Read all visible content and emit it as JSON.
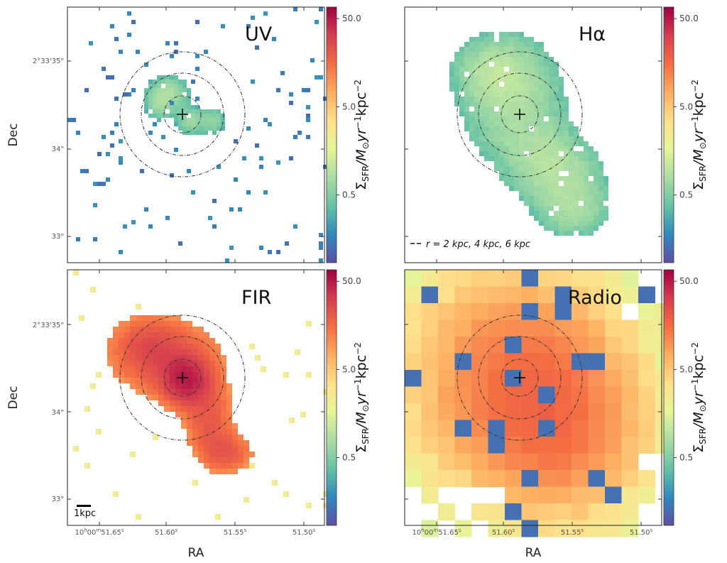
{
  "colors": {
    "scale": [
      "#5e4fa2",
      "#3288bd",
      "#66c2a5",
      "#abdda4",
      "#e6f598",
      "#fee08b",
      "#fdae61",
      "#f46d43",
      "#d53e4f",
      "#9e0142"
    ],
    "circle": "#333333",
    "cross": "#000000"
  },
  "chart_data": {
    "type": "heatmap",
    "colorbar": {
      "label_main": "Σ",
      "label_sub": "SFR",
      "label_rest": "/M",
      "label_sun": "⊙",
      "label_yr": "yr",
      "label_exp1": "−1",
      "label_kpc": "kpc",
      "label_exp2": "−2",
      "ticks": [
        "50.0",
        "5.0",
        "0.5"
      ],
      "scale": "log",
      "range": [
        0.1,
        60
      ]
    },
    "xlabel": "RA",
    "ylabel": "Dec",
    "x_ticks": [
      "10h00m51.65s",
      "51.60s",
      "51.55s",
      "51.50s"
    ],
    "x_tick_parts": [
      {
        "a": "10",
        "b": "h",
        "c": "00",
        "d": "m",
        "e": "51.65",
        "f": "s"
      },
      {
        "a": "",
        "b": "",
        "c": "",
        "d": "",
        "e": "51.60",
        "f": "s"
      },
      {
        "a": "",
        "b": "",
        "c": "",
        "d": "",
        "e": "51.55",
        "f": "s"
      },
      {
        "a": "",
        "b": "",
        "c": "",
        "d": "",
        "e": "51.50",
        "f": "s"
      }
    ],
    "y_ticks": [
      "2°33'35\"",
      "34\"",
      "33\""
    ],
    "circle_radii_kpc": [
      2,
      4,
      6
    ],
    "legend_text": "r = 2 kpc, 4 kpc, 6 kpc",
    "scale_bar_label": "1kpc",
    "panels": [
      {
        "name": "UV",
        "median_sfr": 0.1
      },
      {
        "name": "Hα",
        "median_sfr": 0.3
      },
      {
        "name": "FIR",
        "median_sfr": 5.0
      },
      {
        "name": "Radio",
        "median_sfr": 2.0
      }
    ]
  }
}
